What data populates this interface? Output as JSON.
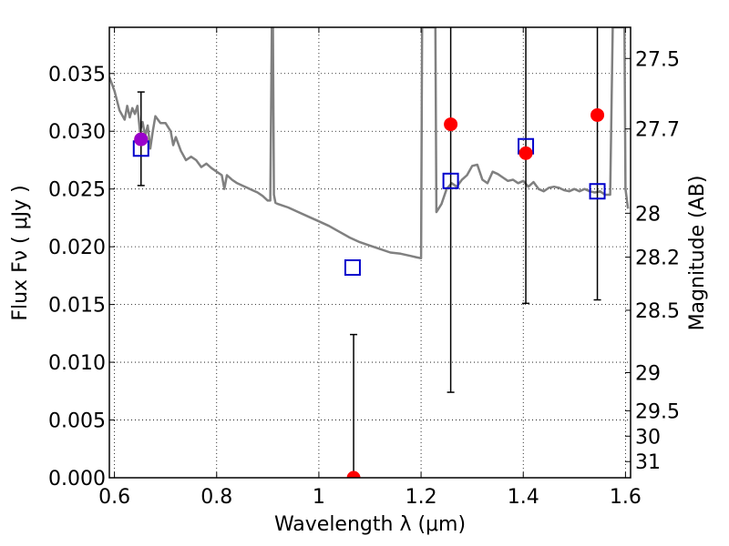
{
  "chart_data": {
    "type": "scatter",
    "xlabel": "Wavelength  λ (μm)",
    "ylabel": "Flux  Fν  ( μJy )",
    "y2label": "Magnitude (AB)",
    "xlim": [
      0.59,
      1.61
    ],
    "ylim": [
      0.0,
      0.039
    ],
    "grid": true,
    "x_ticks": [
      0.6,
      0.8,
      1.0,
      1.2,
      1.4,
      1.6
    ],
    "x_tick_labels": [
      "0.6",
      "0.8",
      "1",
      "1.2",
      "1.4",
      "1.6"
    ],
    "y_ticks": [
      0.0,
      0.005,
      0.01,
      0.015,
      0.02,
      0.025,
      0.03,
      0.035
    ],
    "y_tick_labels": [
      "0.000",
      "0.005",
      "0.010",
      "0.015",
      "0.020",
      "0.025",
      "0.030",
      "0.035"
    ],
    "mag_ticks": [
      {
        "label": "27.5",
        "y": 0.0363
      },
      {
        "label": "27.7",
        "y": 0.0302
      },
      {
        "label": "28",
        "y": 0.0229
      },
      {
        "label": "28.2",
        "y": 0.0191
      },
      {
        "label": "28.5",
        "y": 0.0145
      },
      {
        "label": "29",
        "y": 0.0091
      },
      {
        "label": "29.5",
        "y": 0.0058
      },
      {
        "label": "30",
        "y": 0.0036
      },
      {
        "label": "31",
        "y": 0.0014
      }
    ],
    "model_spectrum": {
      "color": "#808080",
      "x": [
        0.59,
        0.6,
        0.61,
        0.62,
        0.625,
        0.63,
        0.635,
        0.64,
        0.645,
        0.65,
        0.655,
        0.66,
        0.665,
        0.67,
        0.675,
        0.68,
        0.69,
        0.7,
        0.71,
        0.715,
        0.72,
        0.73,
        0.74,
        0.75,
        0.76,
        0.77,
        0.78,
        0.79,
        0.8,
        0.81,
        0.815,
        0.82,
        0.83,
        0.84,
        0.85,
        0.86,
        0.87,
        0.88,
        0.89,
        0.9,
        0.905,
        0.908,
        0.91,
        0.912,
        0.915,
        0.92,
        0.94,
        0.96,
        0.98,
        1.0,
        1.02,
        1.04,
        1.06,
        1.08,
        1.1,
        1.12,
        1.14,
        1.16,
        1.18,
        1.19,
        1.2,
        1.202,
        1.205,
        1.21,
        1.228,
        1.23,
        1.24,
        1.25,
        1.26,
        1.27,
        1.28,
        1.29,
        1.3,
        1.31,
        1.32,
        1.33,
        1.34,
        1.35,
        1.36,
        1.37,
        1.38,
        1.39,
        1.4,
        1.41,
        1.42,
        1.43,
        1.44,
        1.45,
        1.46,
        1.47,
        1.48,
        1.49,
        1.5,
        1.51,
        1.52,
        1.53,
        1.54,
        1.55,
        1.56,
        1.57,
        1.575,
        1.58,
        1.585,
        1.59,
        1.595,
        1.598,
        1.6,
        1.605
      ],
      "y": [
        0.0347,
        0.0335,
        0.0318,
        0.031,
        0.0322,
        0.0312,
        0.032,
        0.0315,
        0.0322,
        0.03,
        0.0308,
        0.0296,
        0.0305,
        0.0285,
        0.03,
        0.0313,
        0.0307,
        0.0307,
        0.03,
        0.0288,
        0.0295,
        0.0283,
        0.0275,
        0.0278,
        0.0275,
        0.0269,
        0.0272,
        0.0268,
        0.0265,
        0.0262,
        0.025,
        0.0262,
        0.0258,
        0.0255,
        0.0253,
        0.0251,
        0.0249,
        0.0247,
        0.0244,
        0.024,
        0.024,
        0.039,
        0.039,
        0.0245,
        0.0238,
        0.0237,
        0.0234,
        0.023,
        0.0226,
        0.0222,
        0.0218,
        0.0213,
        0.0208,
        0.0204,
        0.0201,
        0.0198,
        0.0195,
        0.0194,
        0.0192,
        0.0191,
        0.019,
        0.039,
        0.039,
        0.039,
        0.039,
        0.023,
        0.0237,
        0.025,
        0.0255,
        0.0252,
        0.0258,
        0.0262,
        0.027,
        0.0271,
        0.0258,
        0.0255,
        0.0265,
        0.0263,
        0.026,
        0.0257,
        0.0258,
        0.0255,
        0.0257,
        0.0252,
        0.0256,
        0.025,
        0.0248,
        0.0251,
        0.0252,
        0.0251,
        0.0249,
        0.0248,
        0.025,
        0.0248,
        0.025,
        0.0248,
        0.0247,
        0.0248,
        0.0245,
        0.0245,
        0.039,
        0.039,
        0.039,
        0.039,
        0.039,
        0.039,
        0.025,
        0.0233
      ]
    },
    "model_points": {
      "color": "#0000cc",
      "x": [
        0.652,
        1.066,
        1.258,
        1.405,
        1.545
      ],
      "y": [
        0.0285,
        0.0182,
        0.0257,
        0.0287,
        0.0248
      ]
    },
    "observed_points": {
      "color": "#ff0000",
      "x": [
        0.652,
        1.068,
        1.258,
        1.405,
        1.545
      ],
      "y": [
        0.0293,
        0.0,
        0.0306,
        0.0281,
        0.0314
      ],
      "yerr_low": [
        0.0253,
        0.0,
        0.0074,
        0.0151,
        0.0154
      ],
      "yerr_high": [
        0.0334,
        0.0124,
        0.039,
        0.039,
        0.039
      ]
    },
    "highlight_point": {
      "x": 0.652,
      "y": 0.0293,
      "color": "#9900cc"
    }
  }
}
